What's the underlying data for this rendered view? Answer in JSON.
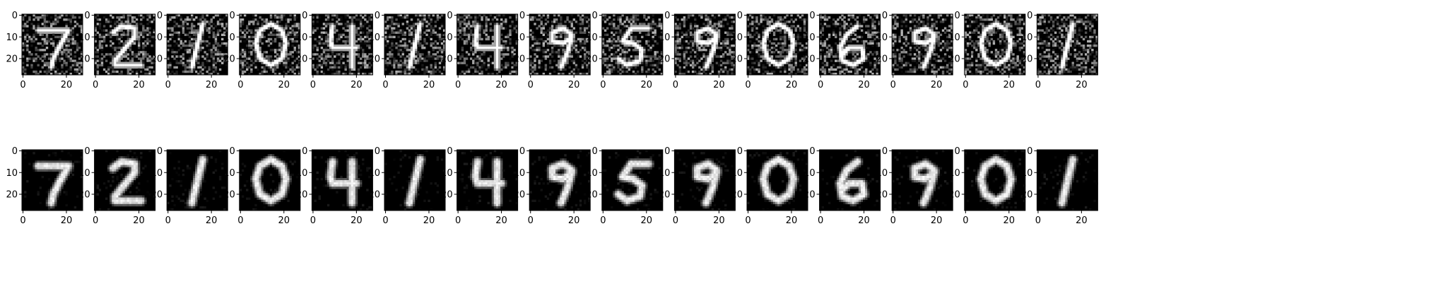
{
  "figure": {
    "rows": [
      {
        "id": "noisy",
        "noise": 0.72,
        "stroke_gain": 1.0,
        "blur": 0.0
      },
      {
        "id": "denoised",
        "noise": 0.0,
        "stroke_gain": 1.0,
        "blur": 0.9
      }
    ]
  },
  "chart_data": {
    "type": "heatmap",
    "layout": "image grid, 2 rows x 15 columns",
    "colormap": "gray",
    "digits": [
      7,
      2,
      1,
      0,
      4,
      1,
      4,
      9,
      5,
      9,
      0,
      6,
      9,
      0,
      1
    ],
    "image_shape": [
      28,
      28
    ],
    "xlim": [
      -0.5,
      27.5
    ],
    "ylim": [
      27.5,
      -0.5
    ],
    "x_ticks": [
      0,
      20
    ],
    "y_ticks": [
      0,
      10,
      20
    ],
    "x_tick_labels": [
      "0",
      "20"
    ],
    "y_tick_labels": [
      "0",
      "10",
      "20"
    ]
  }
}
